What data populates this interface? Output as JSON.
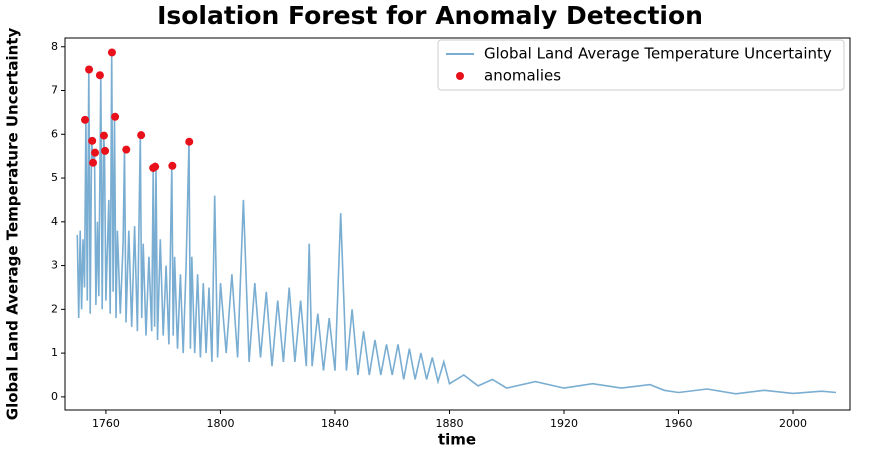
{
  "chart_data": {
    "type": "line",
    "title": "Isolation Forest for Anomaly Detection",
    "x_label": "time",
    "y_label": "Global Land Average Temperature Uncertainty",
    "xlim": [
      1745.7,
      2019.9
    ],
    "ylim": [
      -0.3,
      8.2
    ],
    "xticks": [
      1760,
      1800,
      1840,
      1880,
      1920,
      1960,
      2000
    ],
    "yticks": [
      0,
      1,
      2,
      3,
      4,
      5,
      6,
      7,
      8
    ],
    "legend": "upper right",
    "grid": false,
    "series": [
      {
        "name": "Global Land Average Temperature Uncertainty",
        "type": "line",
        "color": "#79add2",
        "x": [
          1750,
          1750.5,
          1751,
          1751.5,
          1752,
          1752.5,
          1753,
          1753.5,
          1754,
          1754.5,
          1755,
          1755.5,
          1756,
          1756.5,
          1757,
          1757.5,
          1758.2,
          1758.7,
          1759.2,
          1759.5,
          1760,
          1761,
          1761.5,
          1762,
          1762.5,
          1763,
          1763.5,
          1764,
          1765,
          1766,
          1766.5,
          1767,
          1768,
          1769,
          1770,
          1771,
          1772,
          1772.5,
          1773,
          1774,
          1775,
          1776,
          1776.5,
          1777,
          1777.5,
          1778,
          1779,
          1780,
          1781,
          1782,
          1783,
          1783.5,
          1784,
          1785,
          1786,
          1787,
          1788,
          1789,
          1789.5,
          1790,
          1791,
          1792,
          1793,
          1794,
          1795,
          1796,
          1797,
          1798,
          1799,
          1800,
          1802,
          1804,
          1806,
          1808,
          1810,
          1812,
          1814,
          1816,
          1818,
          1820,
          1822,
          1824,
          1826,
          1828,
          1830,
          1831,
          1832,
          1834,
          1836,
          1838,
          1840,
          1842,
          1844,
          1846,
          1848,
          1850,
          1852,
          1854,
          1856,
          1858,
          1860,
          1862,
          1864,
          1866,
          1868,
          1870,
          1872,
          1874,
          1876,
          1878,
          1880,
          1885,
          1890,
          1895,
          1900,
          1910,
          1920,
          1930,
          1940,
          1950,
          1955,
          1960,
          1970,
          1980,
          1990,
          2000,
          2010,
          2015
        ],
        "values": [
          3.7,
          1.8,
          3.8,
          2.0,
          3.6,
          2.5,
          6.33,
          2.2,
          7.48,
          1.9,
          5.85,
          5.35,
          5.58,
          2.1,
          4.0,
          2.3,
          7.35,
          2.0,
          5.97,
          5.62,
          2.2,
          4.5,
          1.9,
          7.87,
          2.4,
          6.4,
          1.8,
          3.8,
          1.9,
          3.5,
          5.65,
          1.7,
          3.8,
          1.6,
          3.9,
          1.5,
          5.98,
          1.8,
          3.5,
          1.4,
          3.2,
          1.5,
          5.23,
          1.6,
          5.26,
          1.3,
          3.6,
          1.4,
          3.0,
          1.2,
          5.28,
          1.4,
          3.2,
          1.1,
          2.8,
          1.0,
          3.0,
          5.83,
          1.1,
          3.2,
          1.0,
          2.8,
          0.9,
          2.6,
          1.0,
          2.5,
          0.8,
          4.6,
          0.9,
          2.6,
          1.0,
          2.8,
          0.9,
          4.5,
          0.8,
          2.6,
          0.9,
          2.4,
          0.7,
          2.2,
          0.8,
          2.5,
          0.8,
          2.2,
          0.7,
          3.5,
          0.7,
          1.9,
          0.6,
          1.8,
          0.6,
          4.2,
          0.6,
          2.0,
          0.5,
          1.5,
          0.5,
          1.3,
          0.5,
          1.2,
          0.5,
          1.2,
          0.4,
          1.1,
          0.4,
          1.0,
          0.4,
          0.9,
          0.35,
          0.8,
          0.3,
          0.5,
          0.25,
          0.4,
          0.2,
          0.35,
          0.2,
          0.3,
          0.2,
          0.28,
          0.15,
          0.1,
          0.18,
          0.07,
          0.15,
          0.08,
          0.13,
          0.1
        ]
      },
      {
        "name": "anomalies",
        "type": "scatter",
        "color": "#e8101a",
        "x": [
          1752.7,
          1754.1,
          1755.2,
          1755.5,
          1756.2,
          1757.9,
          1759.3,
          1759.7,
          1762.1,
          1763.2,
          1767.1,
          1772.3,
          1776.5,
          1777.2,
          1783.2,
          1789.1
        ],
        "values": [
          6.33,
          7.48,
          5.85,
          5.35,
          5.58,
          7.35,
          5.97,
          5.62,
          7.87,
          6.4,
          5.65,
          5.98,
          5.23,
          5.26,
          5.28,
          5.83
        ]
      }
    ]
  }
}
